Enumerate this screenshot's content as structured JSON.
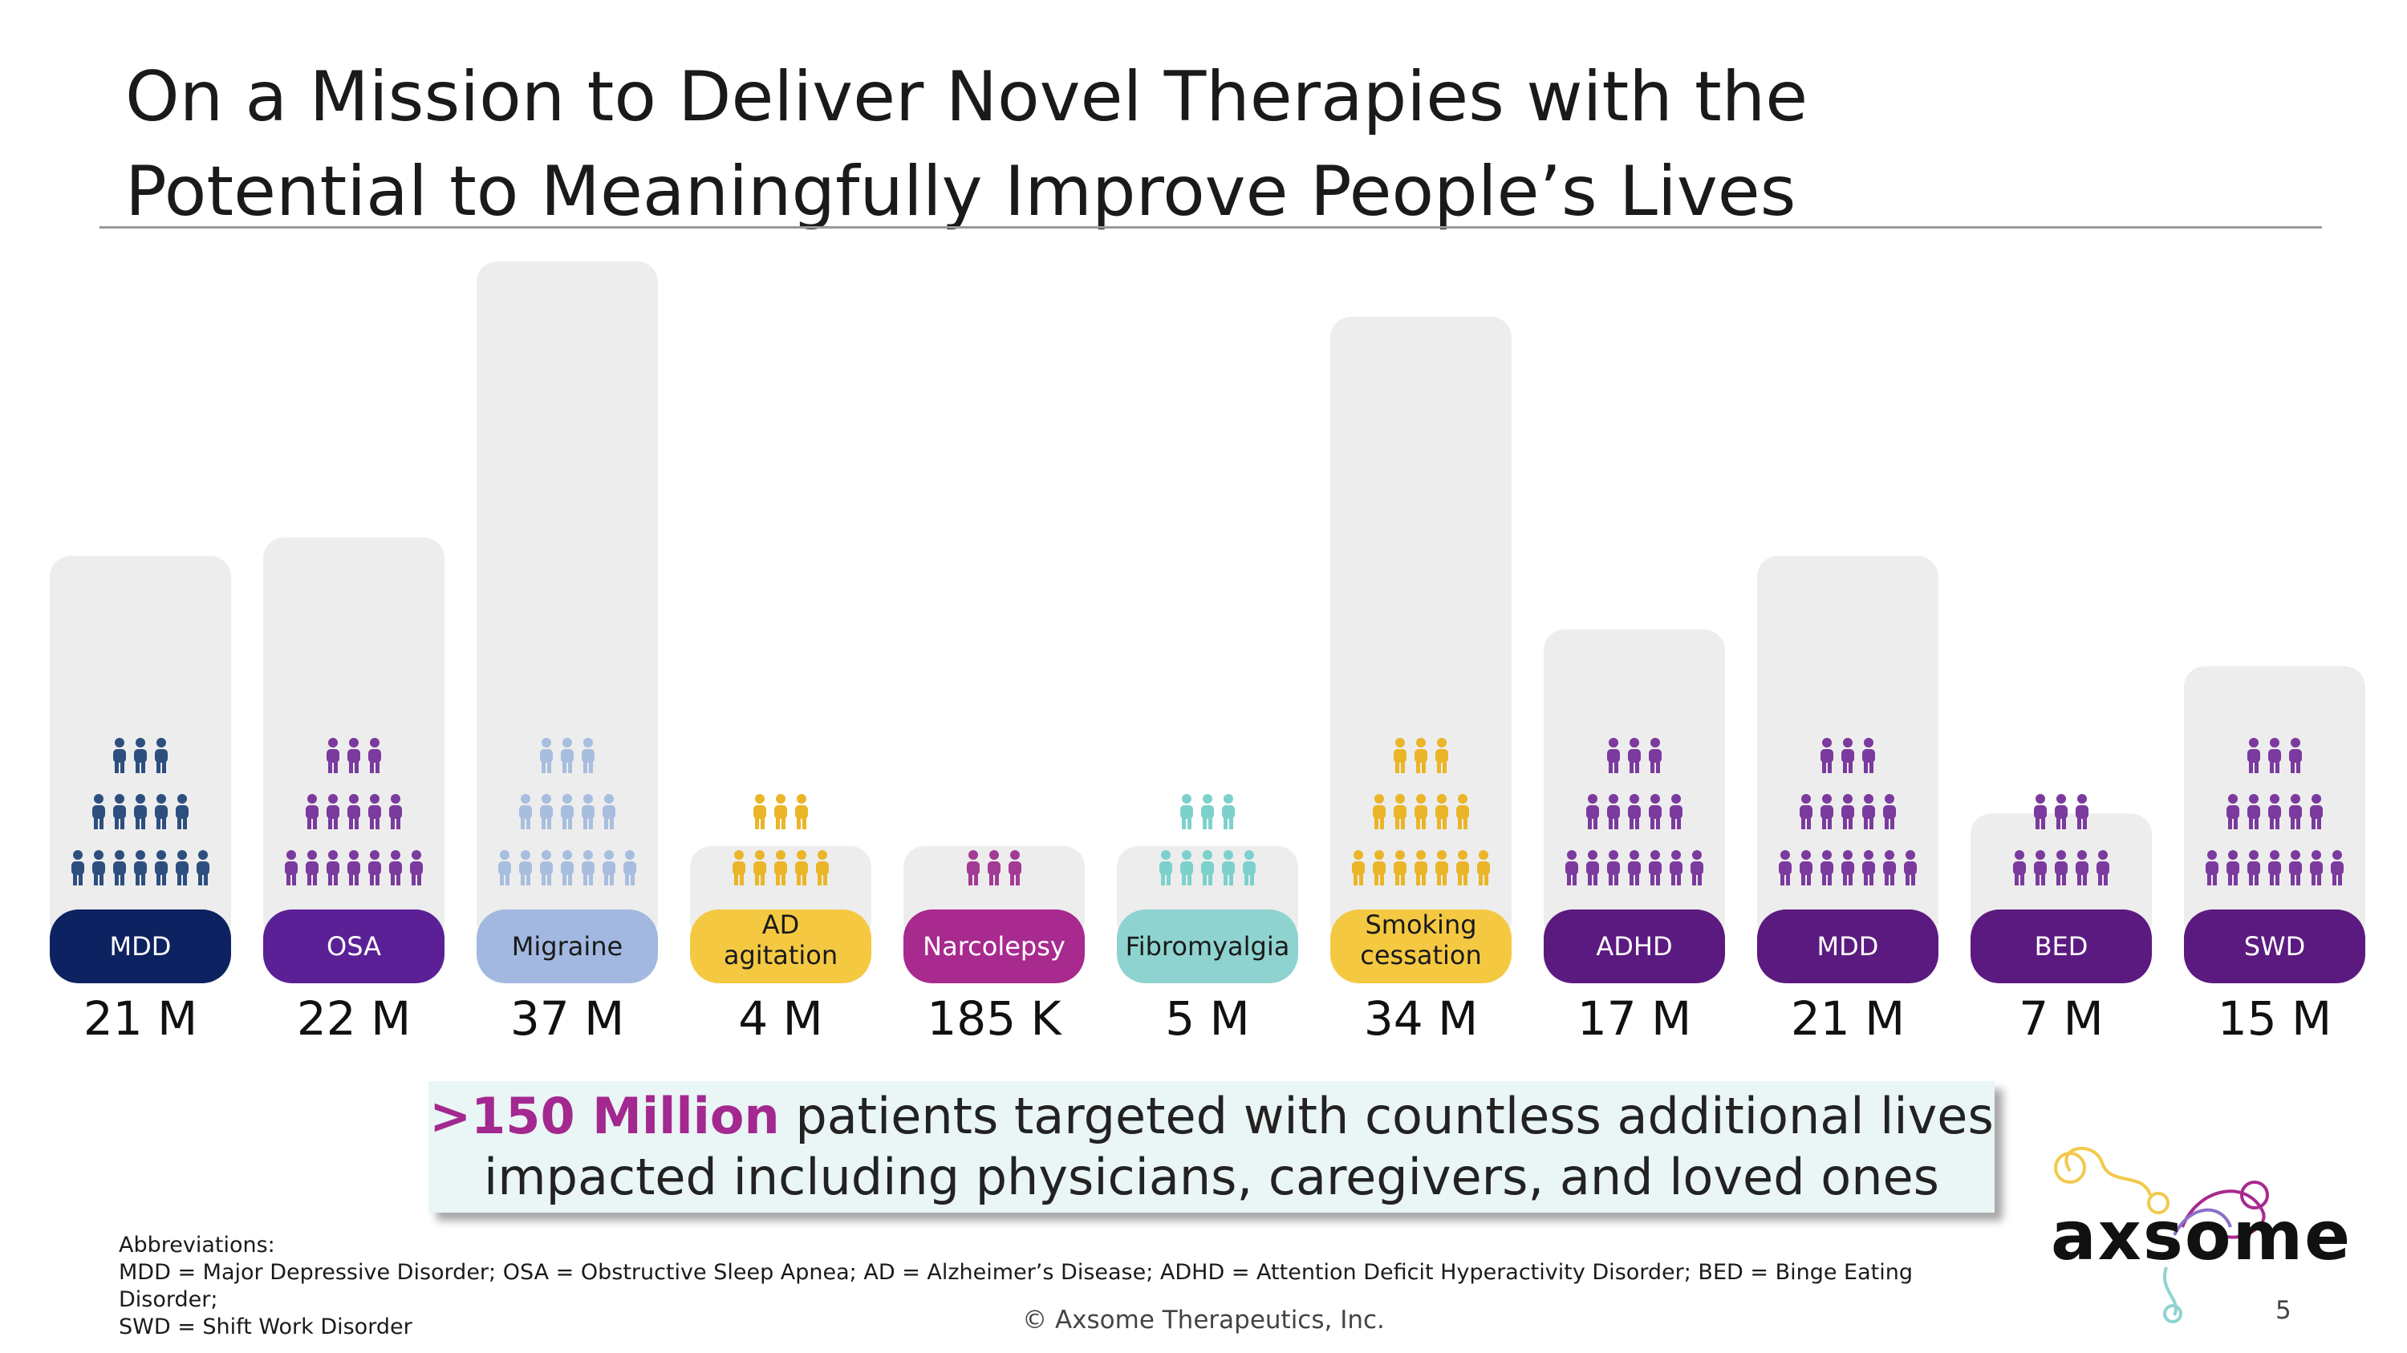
{
  "title": {
    "line1": "On a Mission to Deliver Novel Therapies with the",
    "line2": "Potential to Meaningfully Improve People’s Lives"
  },
  "chart_data": {
    "type": "bar",
    "categories": [
      "MDD",
      "OSA",
      "Migraine",
      "AD agitation",
      "Narcolepsy",
      "Fibromyalgia",
      "Smoking cessation",
      "ADHD",
      "MDD",
      "BED",
      "SWD"
    ],
    "values": [
      21,
      22,
      37,
      4,
      0.185,
      5,
      34,
      17,
      21,
      7,
      15
    ],
    "value_labels": [
      "21 M",
      "22 M",
      "37 M",
      "4 M",
      "185 K",
      "5 M",
      "34 M",
      "17 M",
      "21 M",
      "7 M",
      "15 M"
    ],
    "unit": "millions of patients",
    "colors": [
      "#0d2260",
      "#5b2096",
      "#a2b8e0",
      "#f5c842",
      "#a82a8e",
      "#8fd3d0",
      "#f5c842",
      "#5b1a80",
      "#5b1a80",
      "#5b1a80",
      "#5b1a80"
    ],
    "icon_colors": [
      "#2d4f80",
      "#7b3a9e",
      "#a7bedf",
      "#eab528",
      "#a23b94",
      "#7dd1cc",
      "#eab528",
      "#7b3a9e",
      "#7b3a9e",
      "#7b3a9e",
      "#7b3a9e"
    ],
    "icon_rows": [
      3,
      3,
      3,
      2,
      1,
      2,
      3,
      3,
      3,
      2,
      3
    ],
    "label_dark": [
      false,
      false,
      true,
      true,
      false,
      true,
      true,
      false,
      false,
      false,
      false
    ],
    "grid": false,
    "legend": "none"
  },
  "callout": {
    "highlight": ">150 Million",
    "line1_rest": " patients targeted with countless additional lives",
    "line2": "impacted including physicians, caregivers, and loved ones"
  },
  "abbreviations": {
    "heading": "Abbreviations:",
    "line1": "MDD = Major Depressive Disorder; OSA = Obstructive Sleep Apnea; AD = Alzheimer’s Disease; ADHD = Attention Deficit Hyperactivity Disorder; BED = Binge Eating Disorder;",
    "line2": "SWD = Shift Work Disorder"
  },
  "footer": {
    "copyright": "© Axsome Therapeutics, Inc.",
    "page_number": "5"
  },
  "logo": {
    "text": "axsome",
    "colors": [
      "#f2c94c",
      "#8fd3d0",
      "#a82a8e"
    ]
  }
}
